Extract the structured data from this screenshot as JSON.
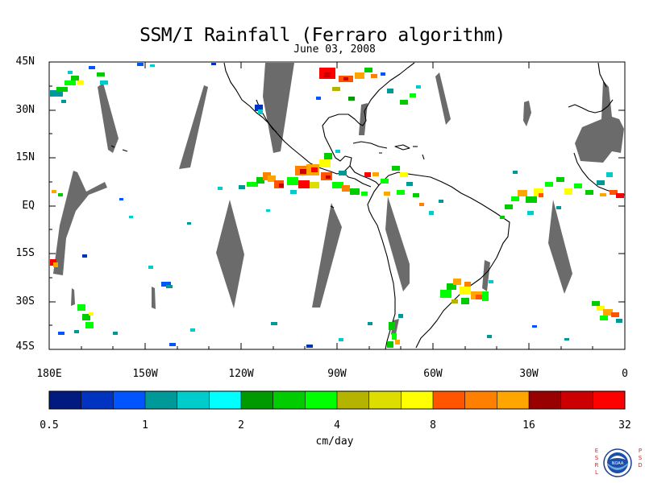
{
  "title": "SSM/I Rainfall (Ferraro algorithm)",
  "subtitle": "June 03, 2008",
  "map": {
    "projection": "cylindrical equidistant",
    "lon_range": [
      -180,
      0
    ],
    "lat_range": [
      -45,
      45
    ],
    "lat_labels": [
      "45N",
      "30N",
      "15N",
      "EQ",
      "15S",
      "30S",
      "45S"
    ],
    "lon_labels": [
      "180E",
      "150W",
      "120W",
      "90W",
      "60W",
      "30W",
      "0"
    ],
    "coastline_color": "#000000",
    "no_data_color": "#6b6b6b"
  },
  "colorbar": {
    "colors": [
      "#001a80",
      "#0033bf",
      "#0055ff",
      "#009999",
      "#00cccc",
      "#00ffff",
      "#009900",
      "#00cc00",
      "#00ff00",
      "#b3b300",
      "#dddd00",
      "#ffff00",
      "#ff5500",
      "#ff7f00",
      "#ffa500",
      "#990000",
      "#cc0000",
      "#ff0000"
    ],
    "tick_labels": [
      "0.5",
      "1",
      "2",
      "4",
      "8",
      "16",
      "32"
    ],
    "units": "cm/day"
  },
  "logo": {
    "left_letters": [
      "E",
      "S",
      "R",
      "L"
    ],
    "right_letters": [
      "P",
      "S",
      "D"
    ],
    "disc_text": "NOAA"
  }
}
